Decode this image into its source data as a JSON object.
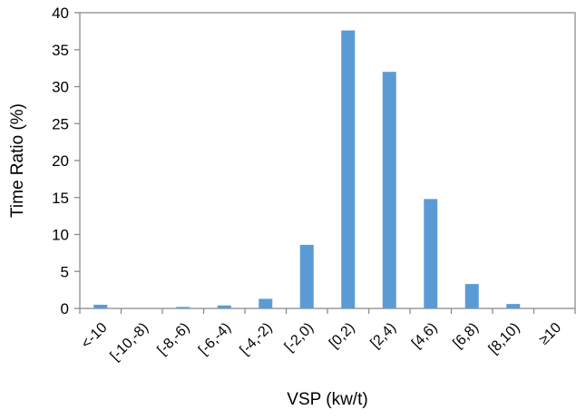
{
  "chart_data": {
    "type": "bar",
    "title": "",
    "xlabel": "VSP (kw/t)",
    "ylabel": "Time Ratio (%)",
    "categories": [
      "<-10",
      "[-10,-8)",
      "[-8,-6)",
      "[-6,-4)",
      "[-4,-2)",
      "[-2,0)",
      "[0,2)",
      "[2,4)",
      "[4,6)",
      "[6,8)",
      "[8,10)",
      "≥10"
    ],
    "values": [
      0.5,
      0.0,
      0.2,
      0.4,
      1.3,
      8.6,
      37.6,
      32.0,
      14.8,
      3.3,
      0.6,
      0.0
    ],
    "ylim": [
      0,
      40
    ],
    "yticks": [
      0,
      5,
      10,
      15,
      20,
      25,
      30,
      35,
      40
    ],
    "grid": false,
    "bar_color": "#5b9bd5"
  }
}
